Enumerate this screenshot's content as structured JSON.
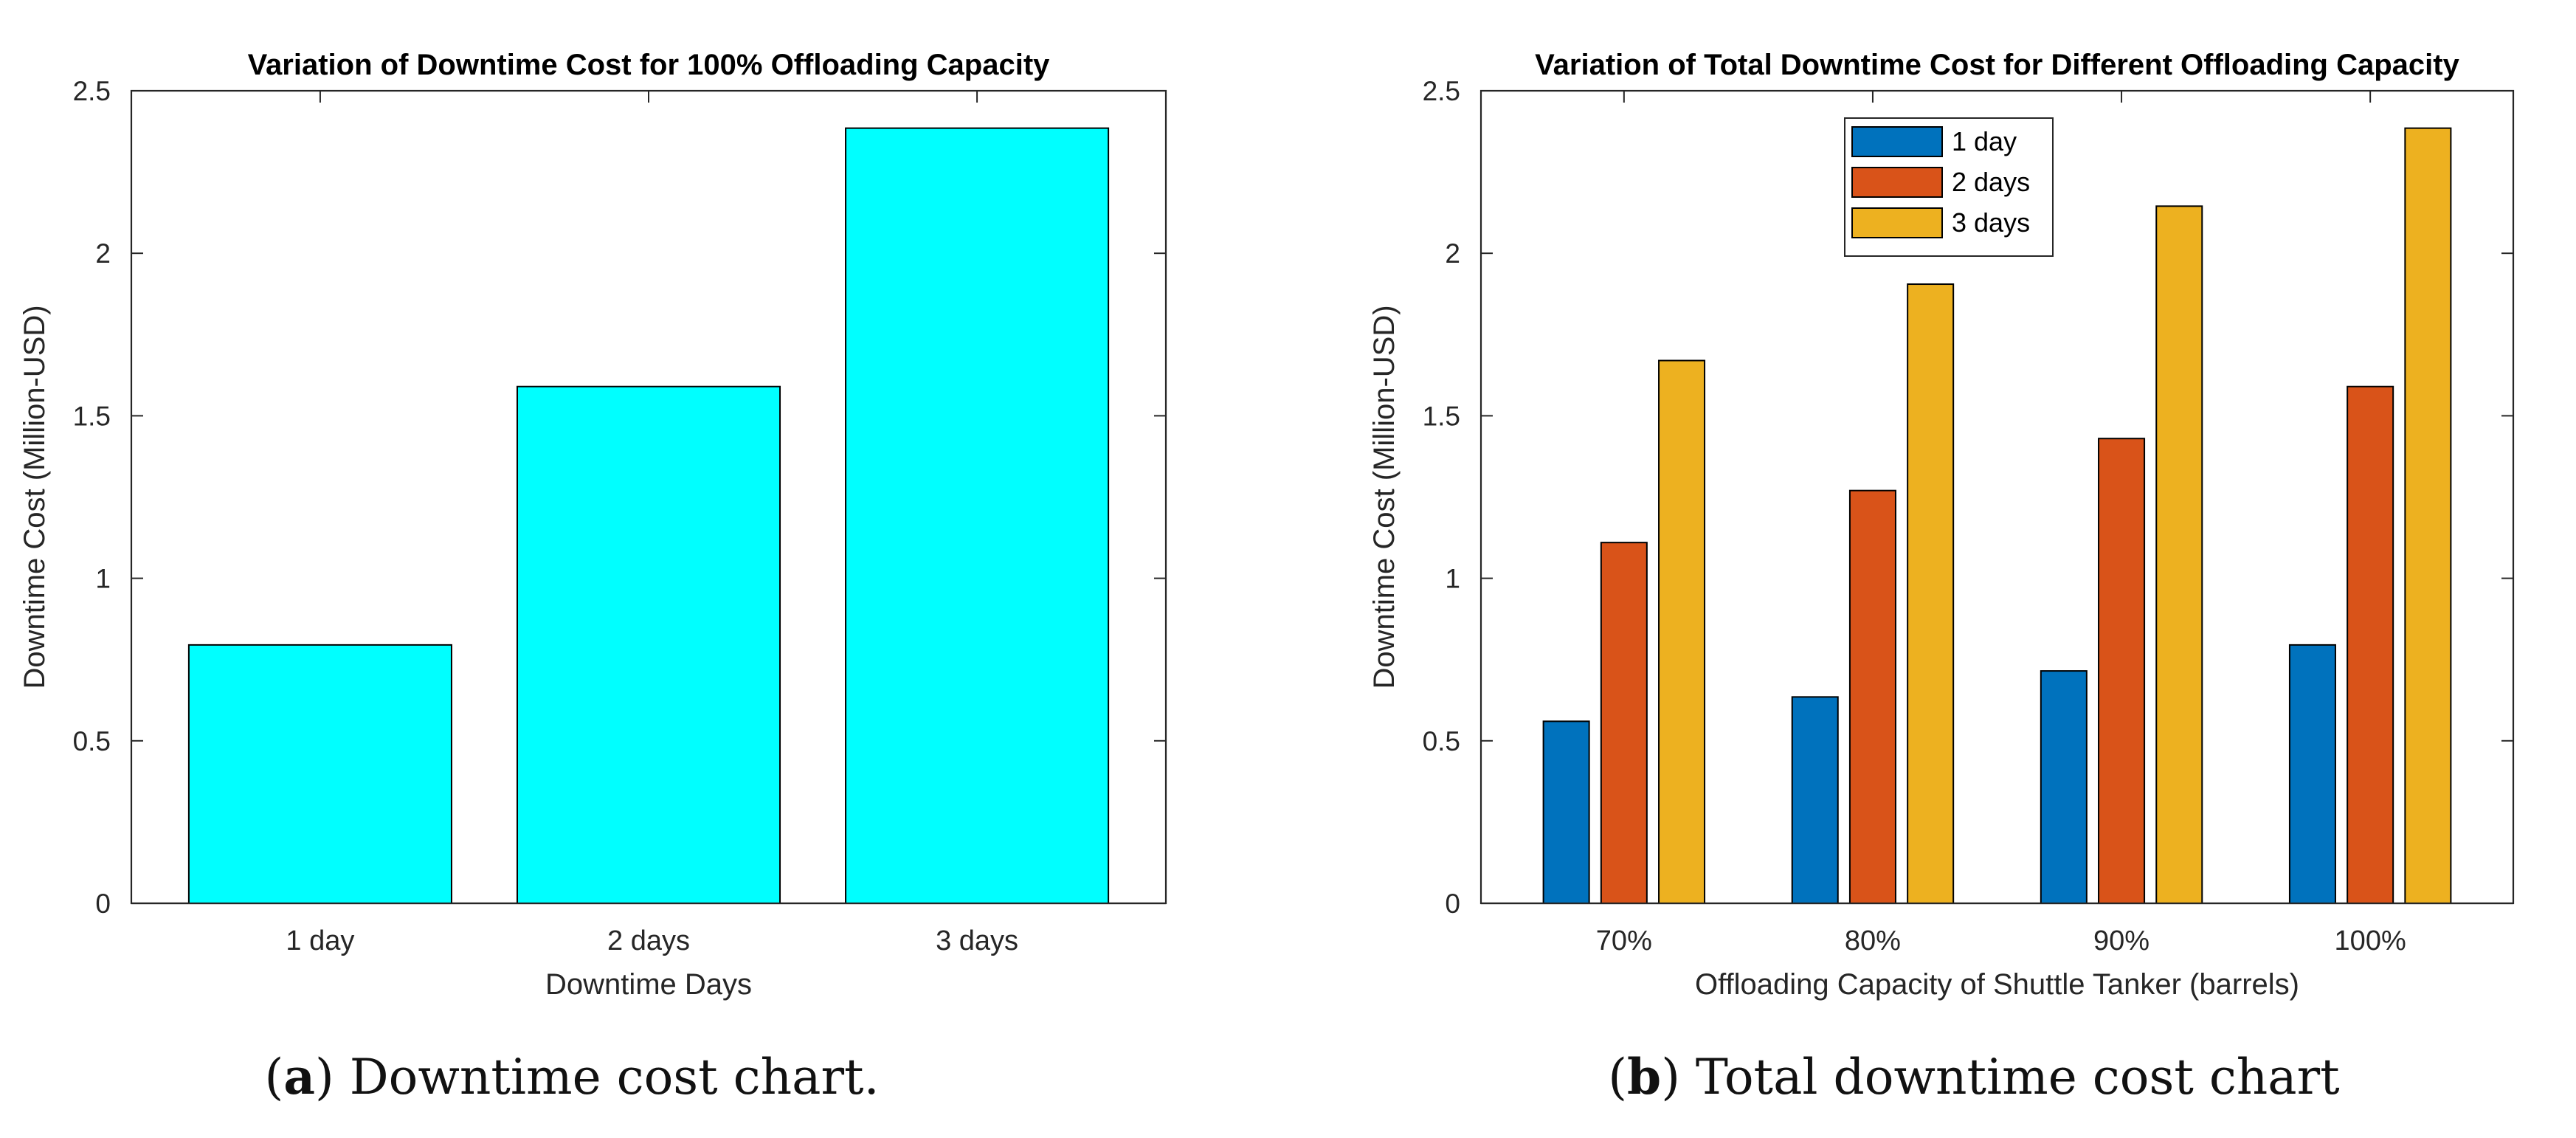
{
  "chart_data": [
    {
      "type": "bar",
      "title": "Variation of Downtime Cost for 100% Offloading Capacity",
      "xlabel": "Downtime Days",
      "ylabel": "Downtime Cost (Million-USD)",
      "categories": [
        "1 day",
        "2 days",
        "3 days"
      ],
      "values": [
        0.795,
        1.59,
        2.385
      ],
      "ylim": [
        0,
        2.5
      ],
      "yticks": [
        0,
        0.5,
        1,
        1.5,
        2,
        2.5
      ],
      "ytick_labels": [
        "0",
        "0.5",
        "1",
        "1.5",
        "2",
        "2.5"
      ],
      "color": "#00FFFF",
      "grid": false
    },
    {
      "type": "bar",
      "title": "Variation of Total Downtime Cost for Different Offloading Capacity",
      "xlabel": "Offloading Capacity of Shuttle Tanker (barrels)",
      "ylabel": "Downtime Cost (Million-USD)",
      "categories": [
        "70%",
        "80%",
        "90%",
        "100%"
      ],
      "series": [
        {
          "name": "1 day",
          "values": [
            0.56,
            0.635,
            0.715,
            0.795
          ],
          "color": "#0072BD"
        },
        {
          "name": "2 days",
          "values": [
            1.11,
            1.27,
            1.43,
            1.59
          ],
          "color": "#D95319"
        },
        {
          "name": "3 days",
          "values": [
            1.67,
            1.905,
            2.145,
            2.385
          ],
          "color": "#EDB120"
        }
      ],
      "ylim": [
        0,
        2.5
      ],
      "yticks": [
        0,
        0.5,
        1,
        1.5,
        2,
        2.5
      ],
      "ytick_labels": [
        "0",
        "0.5",
        "1",
        "1.5",
        "2",
        "2.5"
      ],
      "legend": "top-center",
      "grid": false
    }
  ],
  "captions": {
    "a": {
      "letter": "a",
      "text": " Downtime cost chart."
    },
    "b": {
      "letter": "b",
      "text": " Total downtime cost chart"
    }
  }
}
